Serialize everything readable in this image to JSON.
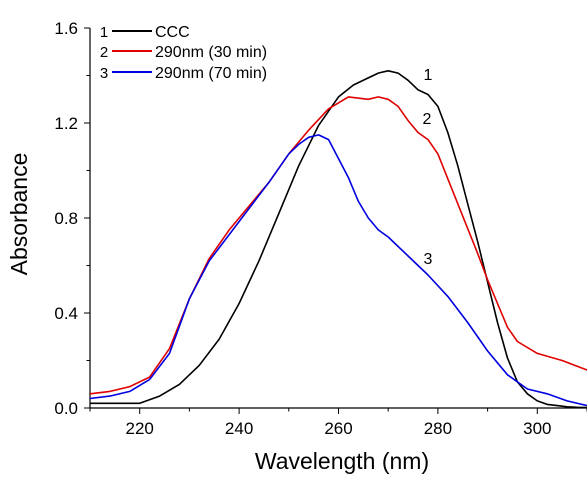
{
  "chart_data": {
    "type": "line",
    "title": "",
    "xlabel": "Wavelength  (nm)",
    "ylabel": "Absorbance",
    "xlim": [
      210,
      310
    ],
    "ylim": [
      0,
      1.6
    ],
    "x_ticks": [
      220,
      240,
      260,
      280,
      300
    ],
    "y_ticks": [
      0.0,
      0.4,
      0.8,
      1.2,
      1.6
    ],
    "x_tick_labels": [
      "220",
      "240",
      "260",
      "280",
      "300"
    ],
    "y_tick_labels": [
      "0.0",
      "0.4",
      "0.8",
      "1.2",
      "1.6"
    ],
    "legend_position": "top-left",
    "grid": false,
    "series": [
      {
        "name": "CCC",
        "legend_number": "1",
        "curve_label": "1",
        "color": "#000000",
        "x": [
          210,
          212,
          216,
          220,
          224,
          228,
          232,
          236,
          240,
          244,
          248,
          252,
          256,
          260,
          263,
          266,
          268,
          270,
          272,
          274,
          276,
          278,
          280,
          282,
          284,
          286,
          288,
          290,
          292,
          294,
          296,
          298,
          300,
          302,
          304,
          306,
          308,
          310
        ],
        "y": [
          0.02,
          0.02,
          0.02,
          0.02,
          0.05,
          0.1,
          0.18,
          0.29,
          0.44,
          0.62,
          0.82,
          1.02,
          1.19,
          1.31,
          1.36,
          1.39,
          1.41,
          1.42,
          1.41,
          1.38,
          1.34,
          1.32,
          1.27,
          1.16,
          1.02,
          0.86,
          0.7,
          0.53,
          0.36,
          0.21,
          0.11,
          0.06,
          0.03,
          0.015,
          0.01,
          0.005,
          0.003,
          0.002
        ]
      },
      {
        "name": "290nm (30 min)",
        "legend_number": "2",
        "curve_label": "2",
        "color": "#e00000",
        "x": [
          210,
          214,
          218,
          222,
          226,
          230,
          234,
          238,
          242,
          246,
          250,
          254,
          258,
          262,
          266,
          268,
          270,
          272,
          274,
          276,
          278,
          280,
          284,
          288,
          290,
          292,
          294,
          296,
          300,
          305,
          310
        ],
        "y": [
          0.06,
          0.07,
          0.09,
          0.13,
          0.25,
          0.46,
          0.63,
          0.75,
          0.85,
          0.95,
          1.07,
          1.17,
          1.26,
          1.31,
          1.3,
          1.31,
          1.3,
          1.27,
          1.21,
          1.16,
          1.13,
          1.07,
          0.86,
          0.65,
          0.54,
          0.44,
          0.34,
          0.28,
          0.23,
          0.2,
          0.16
        ]
      },
      {
        "name": "290nm (70 min)",
        "legend_number": "3",
        "curve_label": "3",
        "color": "#0000e0",
        "x": [
          210,
          214,
          218,
          222,
          226,
          230,
          234,
          238,
          242,
          246,
          250,
          252,
          254,
          256,
          258,
          260,
          262,
          264,
          266,
          268,
          270,
          274,
          278,
          282,
          286,
          290,
          294,
          298,
          302,
          306,
          310
        ],
        "y": [
          0.04,
          0.05,
          0.07,
          0.12,
          0.23,
          0.46,
          0.62,
          0.73,
          0.84,
          0.95,
          1.07,
          1.11,
          1.14,
          1.15,
          1.13,
          1.05,
          0.97,
          0.87,
          0.8,
          0.75,
          0.72,
          0.64,
          0.56,
          0.47,
          0.36,
          0.24,
          0.14,
          0.08,
          0.06,
          0.03,
          0.01
        ]
      }
    ]
  }
}
